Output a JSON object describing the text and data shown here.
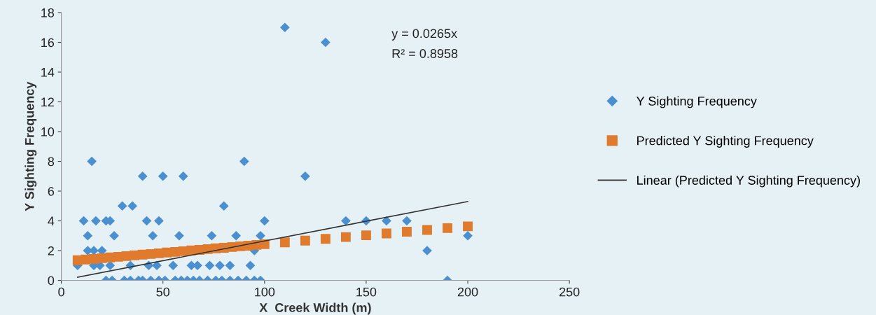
{
  "chart_data": {
    "type": "scatter",
    "xlabel": "X  Creek Width (m)",
    "ylabel": "Y Sighting Frequency",
    "xlim": [
      0,
      250
    ],
    "xticks": [
      0,
      50,
      100,
      150,
      200,
      250
    ],
    "ylim": [
      0,
      18
    ],
    "yticks": [
      0,
      2,
      4,
      6,
      8,
      10,
      12,
      14,
      16,
      18
    ],
    "grid": false,
    "legend": "right",
    "annotations": [
      "y = 0.0265x",
      "R² = 0.8958"
    ],
    "series": [
      {
        "name": "Y Sighting Frequency",
        "marker": "diamond",
        "color": "#4a8fd0",
        "x": [
          22,
          25,
          31,
          34,
          38,
          40,
          44,
          48,
          51,
          56,
          59,
          62,
          65,
          68,
          72,
          76,
          79,
          83,
          87,
          91,
          95,
          98,
          190,
          8,
          16,
          19,
          24,
          34,
          43,
          47,
          55,
          64,
          67,
          73,
          78,
          83,
          93,
          13,
          16,
          20,
          95,
          13,
          26,
          45,
          58,
          74,
          86,
          98,
          11,
          17,
          22,
          24,
          42,
          48,
          100,
          30,
          35,
          80,
          40,
          50,
          60,
          15,
          90,
          110,
          120,
          130,
          140,
          150,
          160,
          170,
          180,
          200
        ],
        "values": [
          0,
          0,
          0,
          0,
          0,
          0,
          0,
          0,
          0,
          0,
          0,
          0,
          0,
          0,
          0,
          0,
          0,
          0,
          0,
          0,
          0,
          0,
          0,
          1,
          1,
          1,
          1,
          1,
          1,
          1,
          1,
          1,
          1,
          1,
          1,
          1,
          1,
          2,
          2,
          2,
          2,
          3,
          3,
          3,
          3,
          3,
          3,
          3,
          4,
          4,
          4,
          4,
          4,
          4,
          4,
          5,
          5,
          5,
          7,
          7,
          7,
          8,
          8,
          17,
          7,
          16,
          4,
          4,
          4,
          4,
          2,
          3
        ]
      },
      {
        "name": "Predicted Y Sighting Frequency",
        "marker": "square",
        "color": "#e07b2e",
        "x": [
          8,
          12,
          16,
          20,
          24,
          28,
          32,
          36,
          40,
          44,
          48,
          52,
          56,
          60,
          64,
          68,
          72,
          76,
          80,
          84,
          88,
          92,
          96,
          100,
          110,
          120,
          130,
          140,
          150,
          160,
          170,
          180,
          190,
          200
        ],
        "values": [
          1.35,
          1.4,
          1.44,
          1.49,
          1.54,
          1.58,
          1.63,
          1.68,
          1.73,
          1.77,
          1.82,
          1.87,
          1.91,
          1.96,
          2.01,
          2.05,
          2.1,
          2.15,
          2.19,
          2.24,
          2.29,
          2.33,
          2.38,
          2.43,
          2.55,
          2.67,
          2.79,
          2.91,
          3.03,
          3.15,
          3.27,
          3.39,
          3.51,
          3.63
        ]
      },
      {
        "name": "Linear (Predicted Y Sighting Frequency)",
        "type": "line",
        "marker": "none",
        "line_style": "solid",
        "color": "#333333",
        "x": [
          8,
          200
        ],
        "values": [
          0.21,
          5.3
        ]
      }
    ]
  }
}
